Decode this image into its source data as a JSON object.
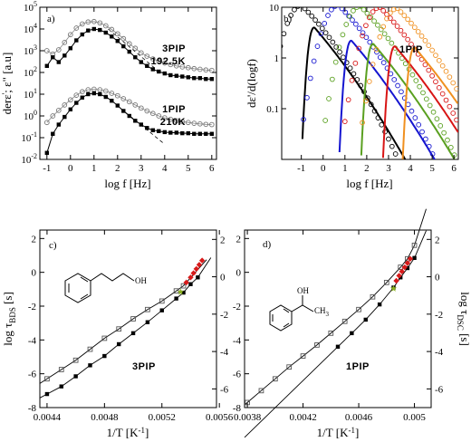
{
  "chart_data": [
    {
      "panel": "a)",
      "type": "scatter",
      "ylabel_parts": [
        "der",
        "ε",
        "'",
        "; ε\"",
        " [a.u]"
      ],
      "xlabel": "log f [Hz]",
      "xlim": [
        -1.3,
        6.2
      ],
      "ylim_log10": [
        -2,
        5
      ],
      "x_ticks": [
        "-1",
        "0",
        "1",
        "2",
        "3",
        "4",
        "5",
        "6"
      ],
      "y_ticks": [
        {
          "base": "10",
          "exp": "-2"
        },
        {
          "base": "10",
          "exp": "-1"
        },
        {
          "base": "10",
          "exp": "0"
        },
        {
          "base": "10",
          "exp": "1"
        },
        {
          "base": "10",
          "exp": "2"
        },
        {
          "base": "10",
          "exp": "3"
        },
        {
          "base": "10",
          "exp": "4"
        },
        {
          "base": "10",
          "exp": "5"
        }
      ],
      "annotations": [
        {
          "lines": [
            "3PIP",
            "192.5K"
          ]
        },
        {
          "lines": [
            "1PIP",
            "210K"
          ]
        }
      ],
      "series": [
        {
          "group": "3PIP",
          "marker": "open-circle",
          "x": [
            -1.0,
            -0.75,
            -0.5,
            -0.25,
            0.0,
            0.25,
            0.5,
            0.75,
            1.0,
            1.25,
            1.5,
            1.75,
            2.0,
            2.25,
            2.5,
            2.75,
            3.0,
            3.25,
            3.5,
            3.75,
            4.0,
            4.25,
            4.5,
            4.75,
            5.0,
            5.25,
            5.5,
            5.75,
            6.0
          ],
          "y": [
            1000,
            700,
            1100,
            2400,
            5500,
            11000,
            17000,
            21000,
            22000,
            19000,
            14000,
            9500,
            6000,
            3600,
            2100,
            1300,
            800,
            560,
            420,
            330,
            270,
            230,
            200,
            180,
            165,
            150,
            140,
            130,
            125
          ]
        },
        {
          "group": "3PIP",
          "marker": "filled-square",
          "x": [
            -1.0,
            -0.75,
            -0.5,
            -0.25,
            0.0,
            0.25,
            0.5,
            0.75,
            1.0,
            1.25,
            1.5,
            1.75,
            2.0,
            2.25,
            2.5,
            2.75,
            3.0,
            3.25,
            3.5,
            3.75,
            4.0,
            4.25,
            4.5,
            4.75,
            5.0,
            5.25,
            5.5,
            5.75,
            6.0
          ],
          "y": [
            200,
            500,
            300,
            600,
            1300,
            3000,
            5600,
            8500,
            10000,
            9000,
            6800,
            4500,
            2800,
            1600,
            900,
            500,
            300,
            200,
            140,
            110,
            90,
            75,
            70,
            65,
            60,
            55,
            55,
            50,
            50
          ]
        },
        {
          "group": "1PIP",
          "marker": "open-circle",
          "x": [
            -1.0,
            -0.75,
            -0.5,
            -0.25,
            0.0,
            0.25,
            0.5,
            0.75,
            1.0,
            1.25,
            1.5,
            1.75,
            2.0,
            2.25,
            2.5,
            2.75,
            3.0,
            3.25,
            3.5,
            3.75,
            4.0,
            4.25,
            4.5,
            4.75,
            5.0,
            5.25,
            5.5,
            5.75,
            6.0
          ],
          "y": [
            0.5,
            1.0,
            1.8,
            3.2,
            5.5,
            9,
            13,
            16,
            17,
            16,
            14,
            11,
            8.5,
            6.2,
            4.5,
            3.2,
            2.3,
            1.7,
            1.3,
            1.0,
            0.82,
            0.7,
            0.6,
            0.54,
            0.5,
            0.46,
            0.43,
            0.41,
            0.4
          ]
        },
        {
          "group": "1PIP",
          "marker": "filled-square",
          "x": [
            -1.0,
            -0.75,
            -0.5,
            -0.25,
            0.0,
            0.25,
            0.5,
            0.75,
            1.0,
            1.25,
            1.5,
            1.75,
            2.0,
            2.25,
            2.5,
            2.75,
            3.0,
            3.25,
            3.5,
            3.75,
            4.0,
            4.25,
            4.5,
            4.75,
            5.0,
            5.25,
            5.5,
            5.75,
            6.0
          ],
          "y": [
            0.02,
            0.15,
            0.4,
            0.9,
            2.0,
            4.0,
            7.0,
            10,
            11,
            10,
            7.5,
            5.0,
            3.0,
            1.7,
            1.0,
            0.6,
            0.4,
            0.28,
            0.22,
            0.2,
            0.18,
            0.17,
            0.17,
            0.16,
            0.16,
            0.15,
            0.15,
            0.15,
            0.15
          ]
        }
      ],
      "dashed_lines": [
        {
          "x": [
            1.6,
            3.8
          ],
          "y": [
            10000,
            100
          ]
        },
        {
          "x": [
            1.5,
            4.0
          ],
          "y": [
            8,
            0.05
          ]
        }
      ]
    },
    {
      "panel": "b)",
      "type": "line",
      "ylabel": "dε'/d(logf)",
      "xlabel": "log f [Hz]",
      "xlim": [
        -1.9,
        6.2
      ],
      "ylim_log10": [
        -2,
        1
      ],
      "x_ticks": [
        "-1",
        "0",
        "1",
        "2",
        "3",
        "4",
        "5",
        "6"
      ],
      "y_ticks": [
        "0.1",
        "1",
        "10"
      ],
      "annotation": "1PIP",
      "series": [
        {
          "color": "#000000",
          "peak_x": -0.4,
          "peak_y": 4.0,
          "open_peak_x": -1.0,
          "open_peak_y": 11.0
        },
        {
          "color": "#1515d0",
          "peak_x": 1.3,
          "peak_y": 2.2,
          "open_peak_x": 0.7,
          "open_peak_y": 11.0
        },
        {
          "color": "#5aa020",
          "peak_x": 2.3,
          "peak_y": 1.9,
          "open_peak_x": 1.7,
          "open_peak_y": 10.5
        },
        {
          "color": "#d81515",
          "peak_x": 3.3,
          "peak_y": 1.7,
          "open_peak_x": 2.6,
          "open_peak_y": 10.0
        },
        {
          "color": "#f09020",
          "peak_x": 4.2,
          "peak_y": 1.6,
          "open_peak_x": 3.4,
          "open_peak_y": 9.5
        }
      ]
    },
    {
      "panel": "c)",
      "type": "scatter",
      "ylabel_parts": [
        "log τ",
        "BDS",
        " [s]"
      ],
      "xlabel": "1/T [K",
      "xlabel_exp": "-1",
      "xlabel_close": "]",
      "xlim": [
        0.00435,
        0.00558
      ],
      "ylim": [
        -8,
        2.5
      ],
      "right_ylim": [
        -7,
        2.5
      ],
      "x_ticks": [
        "0.0044",
        "0.0048",
        "0.0052",
        "0.0056"
      ],
      "y_ticks": [
        "-8",
        "-6",
        "-4",
        "-2",
        "0",
        "2"
      ],
      "right_ticks": [
        "-6",
        "-4",
        "-2",
        "0",
        "2"
      ],
      "annotation": "3PIP",
      "molecule_label": "OH",
      "series": [
        {
          "marker": "open-square",
          "x": [
            0.0044,
            0.0045,
            0.0046,
            0.0047,
            0.0048,
            0.0049,
            0.005,
            0.0051,
            0.0052,
            0.0053,
            0.00535
          ],
          "y": [
            -6.3,
            -5.75,
            -5.2,
            -4.55,
            -3.9,
            -3.35,
            -2.75,
            -2.2,
            -1.7,
            -1.1,
            -0.8
          ]
        },
        {
          "marker": "filled-square",
          "x": [
            0.0044,
            0.0045,
            0.0046,
            0.0047,
            0.0048,
            0.0049,
            0.005,
            0.0051,
            0.0052,
            0.0053,
            0.00535,
            0.0054,
            0.00545
          ],
          "y": [
            -7.2,
            -6.75,
            -6.15,
            -5.5,
            -4.95,
            -4.25,
            -3.6,
            -2.95,
            -2.25,
            -1.55,
            -1.2,
            -0.7,
            -0.3
          ]
        },
        {
          "marker": "red-diamond",
          "x": [
            0.00537,
            0.0054,
            0.00542,
            0.00544,
            0.00546,
            0.00548
          ],
          "y": [
            -0.6,
            -0.3,
            -0.05,
            0.2,
            0.45,
            0.7
          ]
        },
        {
          "marker": "green-star",
          "x": [
            0.00533
          ],
          "y": [
            -1.15
          ]
        }
      ]
    },
    {
      "panel": "d)",
      "type": "scatter",
      "ylabel_parts": [
        "log τ",
        "DSC",
        " [s]"
      ],
      "xlabel": "1/T [K",
      "xlabel_exp": "-1",
      "xlabel_close": "]",
      "xlim": [
        0.00378,
        0.00512
      ],
      "ylim": [
        -8,
        2.5
      ],
      "right_ylim": [
        -7,
        2.5
      ],
      "x_ticks": [
        "0.0038",
        "0.0042",
        "0.0046",
        "0.005"
      ],
      "y_ticks": [
        "-8",
        "-6",
        "-4",
        "-2",
        "0",
        "2"
      ],
      "right_ticks": [
        "-6",
        "-4",
        "-2",
        "0",
        "2"
      ],
      "annotation": "1PIP",
      "molecule_label": "OH",
      "molecule_label2": "CH",
      "molecule_label2_sub": "3",
      "series": [
        {
          "marker": "open-square",
          "x": [
            0.0038,
            0.0039,
            0.004,
            0.0041,
            0.0042,
            0.0043,
            0.0044,
            0.0045,
            0.0046,
            0.0047,
            0.0048,
            0.0049,
            0.00495,
            0.005
          ],
          "y": [
            -7.7,
            -7.0,
            -6.3,
            -5.6,
            -4.95,
            -4.3,
            -3.6,
            -2.9,
            -2.2,
            -1.45,
            -0.6,
            0.3,
            0.8,
            1.6
          ]
        },
        {
          "marker": "filled-square",
          "x": [
            0.00445,
            0.00455,
            0.00465,
            0.00475,
            0.00485,
            0.0049,
            0.00495,
            0.005
          ],
          "y": [
            -4.4,
            -3.6,
            -2.8,
            -1.9,
            -0.9,
            -0.3,
            0.25,
            0.85
          ]
        },
        {
          "marker": "red-diamond",
          "x": [
            0.00487,
            0.00489,
            0.00491,
            0.00493,
            0.00495,
            0.00497
          ],
          "y": [
            -0.5,
            -0.2,
            0.05,
            0.3,
            0.55,
            0.8
          ]
        },
        {
          "marker": "green-star",
          "x": [
            0.00485
          ],
          "y": [
            -0.95
          ]
        }
      ]
    }
  ]
}
